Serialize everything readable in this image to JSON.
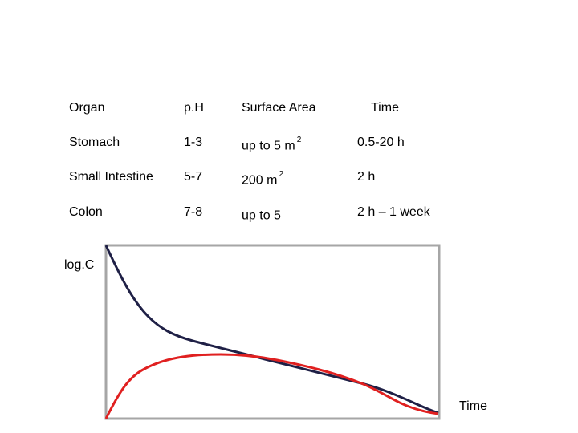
{
  "table": {
    "headers": [
      "Organ",
      "p.H",
      "Surface Area",
      "Time"
    ],
    "rows": [
      {
        "organ": "Stomach",
        "ph": "1-3",
        "surface_area": "up to 5 m",
        "surface_area_sup": "2",
        "time": "0.5-20 h"
      },
      {
        "organ": "Small Intestine",
        "ph": "5-7",
        "surface_area": "200 m",
        "surface_area_sup": "2",
        "time": "2 h"
      },
      {
        "organ": "Colon",
        "ph": "7-8",
        "surface_area": "up to 5",
        "surface_area_sup": "",
        "time": "2 h – 1 week"
      }
    ]
  },
  "chart_data": {
    "type": "line",
    "xlabel": "Time",
    "ylabel": "log.C",
    "grid": false,
    "colors": {
      "series_1": "#1f2046",
      "series_2": "#e02020",
      "frame": "#a6a6a6"
    }
  }
}
